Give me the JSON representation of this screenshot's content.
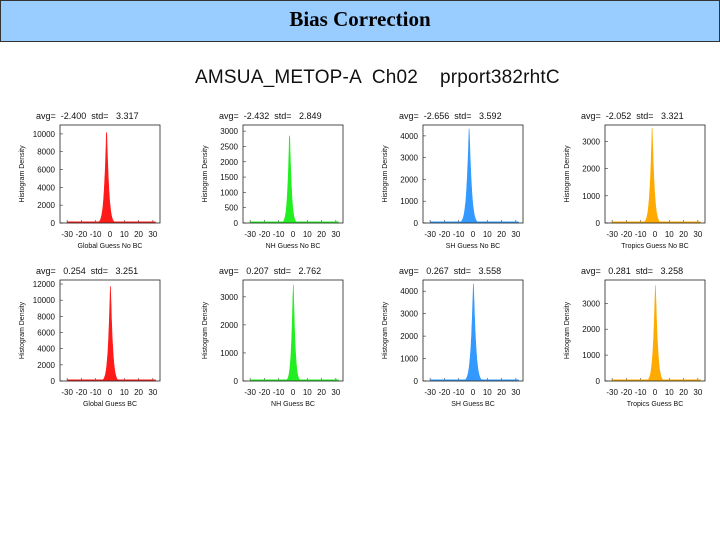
{
  "slide": {
    "title": "Bias Correction"
  },
  "figure": {
    "title": "AMSUA_METOP-A  Ch02    prport382rhtC"
  },
  "colors": {
    "Global": "#ff1a1a",
    "NH": "#22ee22",
    "SH": "#3399ff",
    "Tropics": "#ffaa00"
  },
  "chart_data": [
    {
      "type": "area",
      "region": "Global",
      "title": "avg=  -2.400  std=   3.317",
      "xlabel": "Global Guess  No BC",
      "ylabel": "Histogram Density",
      "xlim": [
        -35,
        35
      ],
      "ylim": [
        0,
        11000
      ],
      "xticks": [
        -30,
        -20,
        -10,
        0,
        10,
        20,
        30
      ],
      "yticks": [
        0,
        2000,
        4000,
        6000,
        8000,
        10000
      ],
      "peak": {
        "x": -2.4,
        "y": 10800
      },
      "std": 3.317
    },
    {
      "type": "area",
      "region": "NH",
      "title": "avg=  -2.432  std=   2.849",
      "xlabel": "NH Guess  No BC",
      "ylabel": "Histogram Density",
      "xlim": [
        -35,
        35
      ],
      "ylim": [
        0,
        3200
      ],
      "xticks": [
        -30,
        -20,
        -10,
        0,
        10,
        20,
        30
      ],
      "yticks": [
        0,
        500,
        1000,
        1500,
        2000,
        2500,
        3000
      ],
      "peak": {
        "x": -2.4,
        "y": 3050
      },
      "std": 2.849
    },
    {
      "type": "area",
      "region": "SH",
      "title": "avg=  -2.656  std=   3.592",
      "xlabel": "SH Guess  No BC",
      "ylabel": "Histogram Density",
      "xlim": [
        -35,
        35
      ],
      "ylim": [
        0,
        4500
      ],
      "xticks": [
        -30,
        -20,
        -10,
        0,
        10,
        20,
        30
      ],
      "yticks": [
        0,
        1000,
        2000,
        3000,
        4000
      ],
      "peak": {
        "x": -2.7,
        "y": 4450
      },
      "std": 3.592
    },
    {
      "type": "area",
      "region": "Tropics",
      "title": "avg=  -2.052  std=   3.321",
      "xlabel": "Tropics Guess  No BC",
      "ylabel": "Histogram Density",
      "xlim": [
        -35,
        35
      ],
      "ylim": [
        0,
        3600
      ],
      "xticks": [
        -30,
        -20,
        -10,
        0,
        10,
        20,
        30
      ],
      "yticks": [
        0,
        1000,
        2000,
        3000
      ],
      "peak": {
        "x": -2.0,
        "y": 3500
      },
      "std": 3.321
    },
    {
      "type": "area",
      "region": "Global",
      "title": "avg=   0.254  std=   3.251",
      "xlabel": "Global Guess BC",
      "ylabel": "Histogram Density",
      "xlim": [
        -35,
        35
      ],
      "ylim": [
        0,
        12500
      ],
      "xticks": [
        -30,
        -20,
        -10,
        0,
        10,
        20,
        30
      ],
      "yticks": [
        0,
        2000,
        4000,
        6000,
        8000,
        10000,
        12000
      ],
      "peak": {
        "x": 0.3,
        "y": 12100
      },
      "std": 3.251
    },
    {
      "type": "area",
      "region": "NH",
      "title": "avg=   0.207  std=   2.762",
      "xlabel": "NH Guess BC",
      "ylabel": "Histogram Density",
      "xlim": [
        -35,
        35
      ],
      "ylim": [
        0,
        3600
      ],
      "xticks": [
        -30,
        -20,
        -10,
        0,
        10,
        20,
        30
      ],
      "yticks": [
        0,
        1000,
        2000,
        3000
      ],
      "peak": {
        "x": 0.2,
        "y": 3550
      },
      "std": 2.762
    },
    {
      "type": "area",
      "region": "SH",
      "title": "avg=   0.267  std=   3.558",
      "xlabel": "SH Guess BC",
      "ylabel": "Histogram Density",
      "xlim": [
        -35,
        35
      ],
      "ylim": [
        0,
        4500
      ],
      "xticks": [
        -30,
        -20,
        -10,
        0,
        10,
        20,
        30
      ],
      "yticks": [
        0,
        1000,
        2000,
        3000,
        4000
      ],
      "peak": {
        "x": 0.3,
        "y": 4450
      },
      "std": 3.558
    },
    {
      "type": "area",
      "region": "Tropics",
      "title": "avg=   0.281  std=   3.258",
      "xlabel": "Tropics Guess BC",
      "ylabel": "Histogram Density",
      "xlim": [
        -35,
        35
      ],
      "ylim": [
        0,
        3900
      ],
      "xticks": [
        -30,
        -20,
        -10,
        0,
        10,
        20,
        30
      ],
      "yticks": [
        0,
        1000,
        2000,
        3000
      ],
      "peak": {
        "x": 0.3,
        "y": 3800
      },
      "std": 3.258
    }
  ]
}
